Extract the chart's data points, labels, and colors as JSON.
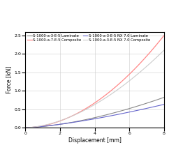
{
  "title": "",
  "xlabel": "Displacement [mm]",
  "ylabel": "Force [kN]",
  "xlim": [
    0,
    8
  ],
  "ylim": [
    0,
    2.6
  ],
  "xticks": [
    0,
    2,
    4,
    6,
    8
  ],
  "yticks": [
    0,
    0.5,
    1.0,
    1.5,
    2.0,
    2.5
  ],
  "series": [
    {
      "label": "S-1000-a-3-E-5 Laminate",
      "color": "#888888",
      "linestyle": "-",
      "linewidth": 0.8,
      "power": 1.6,
      "scale": 0.82
    },
    {
      "label": "S-1000-a-7-E-5 Composite",
      "color": "#ff8888",
      "linestyle": "-",
      "linewidth": 0.9,
      "power": 1.9,
      "scale": 2.5
    },
    {
      "label": "S-1000-a-3-E-5 NX 7.0 Laminate",
      "color": "#6666cc",
      "linestyle": "-",
      "linewidth": 0.8,
      "power": 1.4,
      "scale": 0.63
    },
    {
      "label": "S-1000-a-3-E-5 NX 7.0 Composite",
      "color": "#cccccc",
      "linestyle": "-",
      "linewidth": 0.8,
      "power": 1.75,
      "scale": 2.1
    }
  ],
  "legend_fontsize": 3.8,
  "tick_fontsize": 4.5,
  "label_fontsize": 5.5,
  "figsize": [
    2.42,
    2.08
  ],
  "dpi": 100,
  "background_color": "#f8f8f8"
}
